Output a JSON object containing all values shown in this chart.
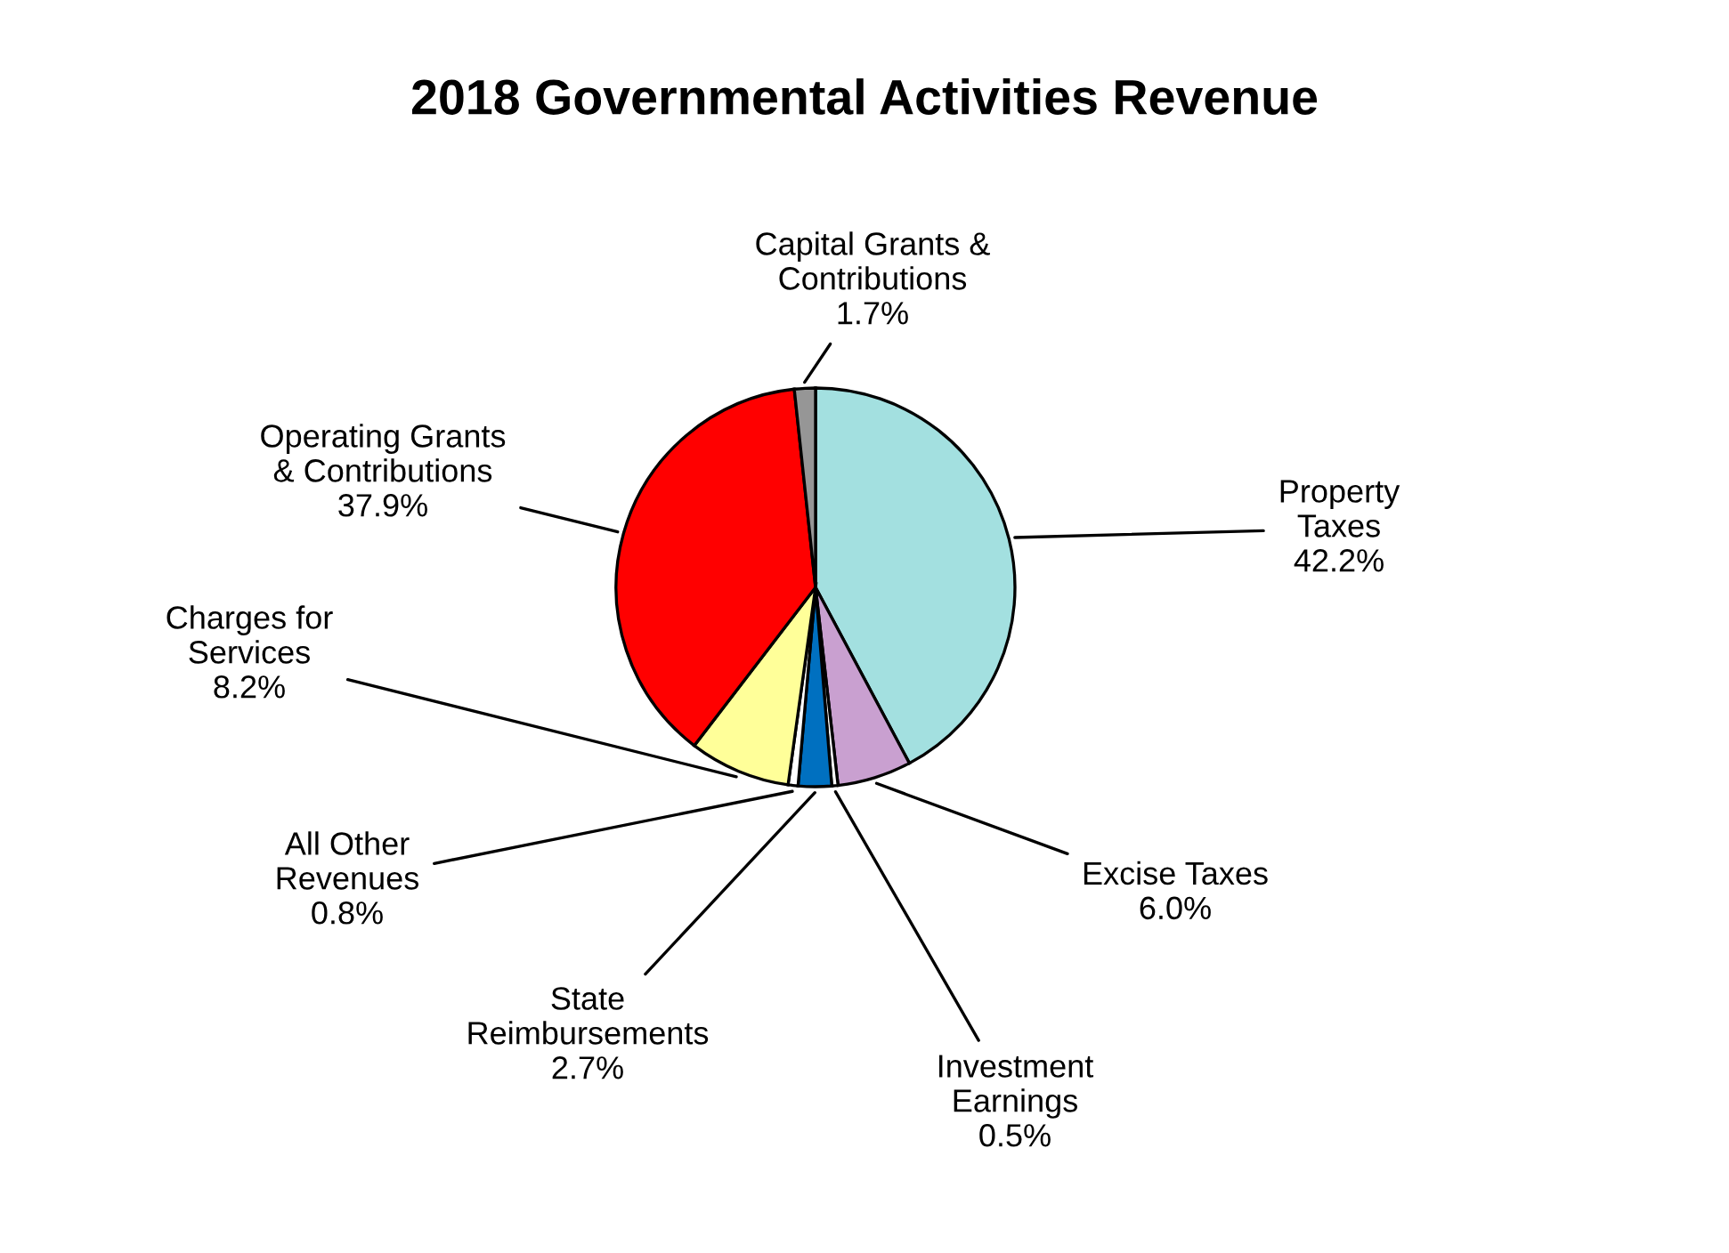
{
  "chart_data": {
    "type": "pie",
    "title": "2018 Governmental Activities Revenue",
    "categories": [
      "Property\nTaxes",
      "Excise Taxes",
      "Investment\nEarnings",
      "State\nReimbursements",
      "All Other\nRevenues",
      "Charges for\nServices",
      "Operating Grants\n& Contributions",
      "Capital Grants &\nContributions"
    ],
    "values": [
      42.2,
      6.0,
      0.5,
      2.7,
      0.8,
      8.2,
      37.9,
      1.7
    ],
    "colors": [
      "#a3e0e0",
      "#c9a0d0",
      "#ffffff",
      "#0070c0",
      "#ffffff",
      "#ffff99",
      "#ff0000",
      "#969696"
    ],
    "value_labels": [
      "42.2%",
      "6.0%",
      "0.5%",
      "2.7%",
      "0.8%",
      "8.2%",
      "37.9%",
      "1.7%"
    ],
    "legend": false
  }
}
